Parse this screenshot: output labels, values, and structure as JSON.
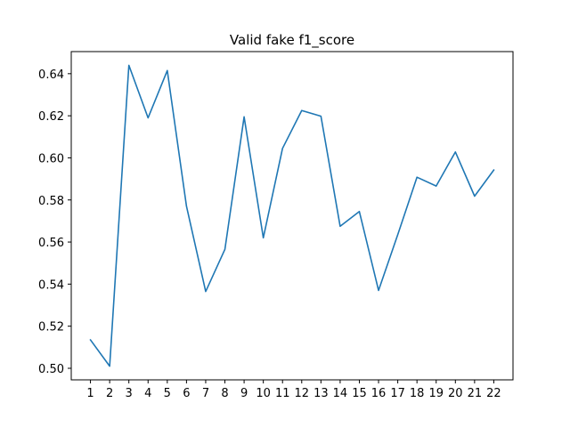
{
  "chart_data": {
    "type": "line",
    "title": "Valid fake f1_score",
    "xlabel": "",
    "ylabel": "",
    "x": [
      1,
      2,
      3,
      4,
      5,
      6,
      7,
      8,
      9,
      10,
      11,
      12,
      13,
      14,
      15,
      16,
      17,
      18,
      19,
      20,
      21,
      22
    ],
    "series": [
      {
        "values": [
          0.5135,
          0.501,
          0.644,
          0.619,
          0.6415,
          0.577,
          0.5365,
          0.5565,
          0.6195,
          0.562,
          0.6045,
          0.6225,
          0.6198,
          0.5675,
          0.5745,
          0.537,
          0.5635,
          0.5908,
          0.5866,
          0.6028,
          0.5818,
          0.5942
        ],
        "color": "#1f77b4"
      }
    ],
    "xticks": [
      "1",
      "2",
      "3",
      "4",
      "5",
      "6",
      "7",
      "8",
      "9",
      "10",
      "11",
      "12",
      "13",
      "14",
      "15",
      "16",
      "17",
      "18",
      "19",
      "20",
      "21",
      "22"
    ],
    "yticks": [
      "0.50",
      "0.52",
      "0.54",
      "0.56",
      "0.58",
      "0.60",
      "0.62",
      "0.64"
    ],
    "xlim": [
      0.0,
      23.0
    ],
    "ylim": [
      0.4945,
      0.6505
    ],
    "grid": false,
    "legend": "none"
  }
}
